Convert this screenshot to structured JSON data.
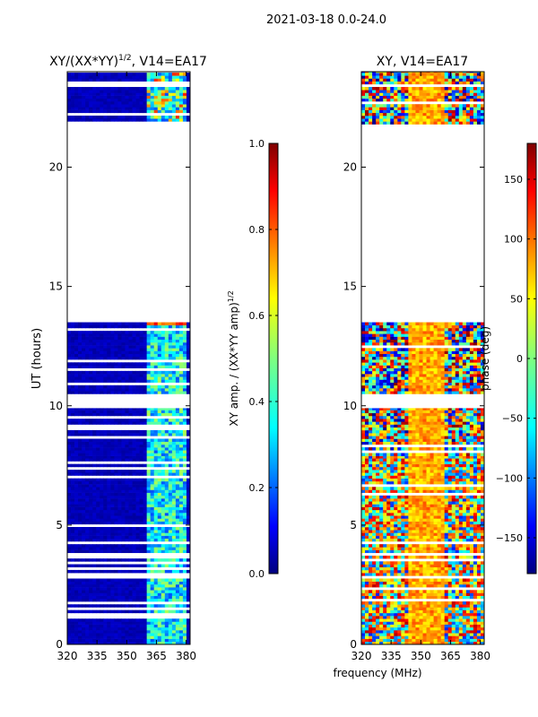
{
  "figure": {
    "suptitle": "2021-03-18 0.0-24.0",
    "xlabel": "frequency (MHz)"
  },
  "colors": {
    "jet": [
      "#00007f",
      "#0000ff",
      "#007fff",
      "#00ffff",
      "#7fff7f",
      "#ffff00",
      "#ff7f00",
      "#ff0000",
      "#7f0000"
    ],
    "frame": "#000000"
  },
  "chart_data": [
    {
      "type": "heatmap",
      "title_main": "XY/(XX*YY)",
      "title_exp": "1/2",
      "title_tail": ", V14=EA17",
      "xlabel": "frequency (MHz)",
      "ylabel": "UT (hours)",
      "x_range": [
        320,
        382
      ],
      "y_range": [
        0,
        24
      ],
      "x_ticks": [
        320,
        335,
        350,
        365,
        380
      ],
      "y_ticks": [
        0,
        5,
        10,
        15,
        20
      ],
      "data_segments_hours": [
        [
          0,
          7.9
        ],
        [
          7.9,
          9.9
        ],
        [
          10.5,
          13.6
        ],
        [
          21.8,
          24
        ]
      ],
      "empty_range_hours": [
        13.6,
        21.8
      ],
      "colorbar": {
        "label_main": "XY amp. / (XX*YY amp)",
        "label_exp": "1/2",
        "range": [
          0.0,
          1.0
        ],
        "ticks": [
          "0.0",
          "0.2",
          "0.4",
          "0.6",
          "0.8",
          "1.0"
        ]
      }
    },
    {
      "type": "heatmap",
      "title": "XY, V14=EA17",
      "xlabel": "frequency (MHz)",
      "ylabel": "",
      "x_range": [
        320,
        382
      ],
      "y_range": [
        0,
        24
      ],
      "x_ticks": [
        320,
        335,
        350,
        365,
        380
      ],
      "y_ticks": [
        0,
        5,
        10,
        15,
        20
      ],
      "data_segments_hours": [
        [
          0,
          7.9
        ],
        [
          7.9,
          9.9
        ],
        [
          10.5,
          13.6
        ],
        [
          21.8,
          24
        ]
      ],
      "empty_range_hours": [
        13.6,
        21.8
      ],
      "colorbar": {
        "label": "phase (deg)",
        "range": [
          -180,
          180
        ],
        "ticks": [
          "−150",
          "−100",
          "−50",
          "0",
          "50",
          "100",
          "150"
        ]
      }
    }
  ]
}
